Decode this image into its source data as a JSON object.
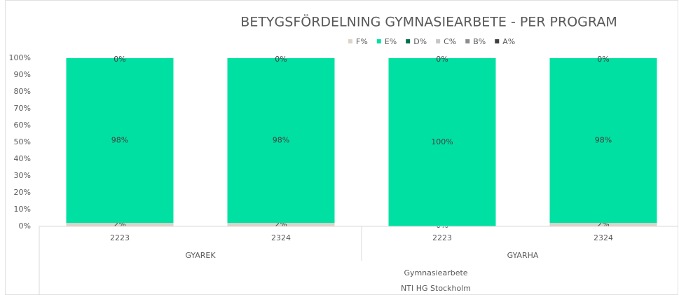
{
  "chart_data": {
    "type": "stacked_bar",
    "title": "BETYGSFÖRDELNING GYMNASIEARBETE - PER PROGRAM",
    "categories": [
      "2223",
      "2324",
      "2223",
      "2324"
    ],
    "group_labels": [
      "GYAREK",
      "GYARHA"
    ],
    "outer_labels": [
      "Gymnasiearbete",
      "NTI HG Stockholm"
    ],
    "series": [
      {
        "name": "F%",
        "color": "#ddd3c8",
        "values": [
          2,
          2,
          0,
          2
        ],
        "value_labels": [
          "2%",
          "2%",
          "0%",
          "2%"
        ]
      },
      {
        "name": "E%",
        "color": "#00e0a2",
        "values": [
          98,
          98,
          100,
          98
        ],
        "value_labels": [
          "98%",
          "98%",
          "100%",
          "98%"
        ]
      },
      {
        "name": "D%",
        "color": "#006e46",
        "values": [
          0,
          0,
          0,
          0
        ],
        "value_labels": [
          "0%",
          "0%",
          "0%",
          "0%"
        ]
      },
      {
        "name": "C%",
        "color": "#c6c6c6",
        "values": [
          0,
          0,
          0,
          0
        ]
      },
      {
        "name": "B%",
        "color": "#8c8c8c",
        "values": [
          0,
          0,
          0,
          0
        ]
      },
      {
        "name": "A%",
        "color": "#3f3f3f",
        "values": [
          0,
          0,
          0,
          0
        ]
      }
    ],
    "ylim": [
      0,
      100
    ],
    "yticks": [
      {
        "value": 0,
        "label": "0%"
      },
      {
        "value": 10,
        "label": "10%"
      },
      {
        "value": 20,
        "label": "20%"
      },
      {
        "value": 30,
        "label": "30%"
      },
      {
        "value": 40,
        "label": "40%"
      },
      {
        "value": 50,
        "label": "50%"
      },
      {
        "value": 60,
        "label": "60%"
      },
      {
        "value": 70,
        "label": "70%"
      },
      {
        "value": 80,
        "label": "80%"
      },
      {
        "value": 90,
        "label": "90%"
      },
      {
        "value": 100,
        "label": "100%"
      }
    ],
    "legend": "top",
    "grid": false
  }
}
